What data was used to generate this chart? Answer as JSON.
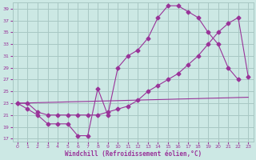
{
  "bg_color": "#cce8e4",
  "grid_color": "#a8c8c4",
  "line_color": "#993399",
  "xlabel": "Windchill (Refroidissement éolien,°C)",
  "xlim": [
    -0.5,
    23.5
  ],
  "ylim": [
    16.5,
    40
  ],
  "yticks": [
    17,
    19,
    21,
    23,
    25,
    27,
    29,
    31,
    33,
    35,
    37,
    39
  ],
  "xticks": [
    0,
    1,
    2,
    3,
    4,
    5,
    6,
    7,
    8,
    9,
    10,
    11,
    12,
    13,
    14,
    15,
    16,
    17,
    18,
    19,
    20,
    21,
    22,
    23
  ],
  "line1_x": [
    0,
    1,
    2,
    3,
    4,
    5,
    6,
    7,
    8,
    9,
    10,
    11,
    12,
    13,
    14,
    15,
    16,
    17,
    18,
    19,
    20,
    21,
    22
  ],
  "line1_y": [
    23,
    22,
    21,
    19.5,
    19.5,
    19.5,
    17.5,
    17.5,
    25.5,
    21,
    29,
    31,
    32,
    34,
    37.5,
    39.5,
    39.5,
    38.5,
    37.5,
    35,
    33,
    29,
    27
  ],
  "line2_x": [
    0,
    1,
    2,
    3,
    4,
    5,
    6,
    7,
    8,
    9,
    10,
    11,
    12,
    13,
    14,
    15,
    16,
    17,
    18,
    19,
    20,
    21,
    22,
    23
  ],
  "line2_y": [
    23,
    23,
    21.5,
    21,
    21,
    21,
    21,
    21,
    21,
    21.5,
    22,
    22.5,
    23.5,
    25,
    26,
    27,
    28,
    29.5,
    31,
    33,
    35,
    36.5,
    37.5,
    27.5
  ],
  "line3_x": [
    0,
    1,
    2,
    3,
    4,
    5,
    6,
    7,
    8,
    9,
    10,
    11,
    12,
    13,
    14,
    15,
    16,
    17,
    18,
    19,
    20,
    21,
    22,
    23
  ],
  "line3_y": [
    23,
    23.04,
    23.09,
    23.13,
    23.17,
    23.22,
    23.26,
    23.3,
    23.35,
    23.39,
    23.43,
    23.48,
    23.52,
    23.57,
    23.61,
    23.65,
    23.7,
    23.74,
    23.78,
    23.83,
    23.87,
    23.91,
    23.96,
    24.0
  ]
}
